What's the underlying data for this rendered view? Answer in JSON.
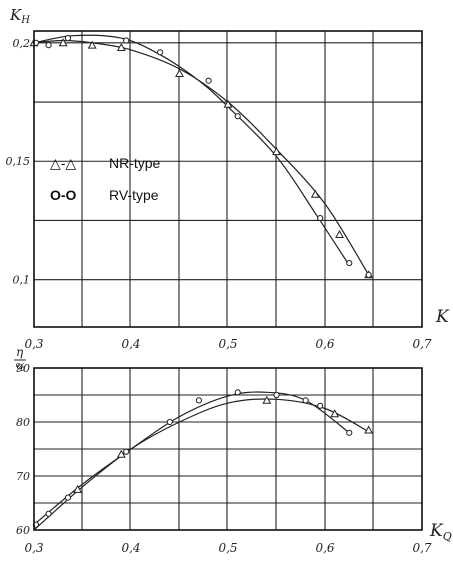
{
  "chart_data": [
    {
      "type": "line",
      "ylabel": "K_H",
      "xlabel": "K_Q",
      "xlim": [
        0.3,
        0.7
      ],
      "ylim": [
        0.08,
        0.205
      ],
      "xticks": [
        "0,3",
        "0,4",
        "0,5",
        "0,6",
        "0,7"
      ],
      "yticks": [
        {
          "v": 0.2,
          "label": "0,2"
        },
        {
          "v": 0.15,
          "label": "0,15"
        },
        {
          "v": 0.1,
          "label": "0,1"
        }
      ],
      "legend": [
        {
          "symbol": "△-△",
          "name": "NR-type"
        },
        {
          "symbol": "O-O",
          "name": "RV-type"
        }
      ],
      "series": [
        {
          "name": "NR-type",
          "marker": "triangle",
          "points": [
            [
              0.3,
              0.2
            ],
            [
              0.33,
              0.2
            ],
            [
              0.36,
              0.199
            ],
            [
              0.39,
              0.198
            ],
            [
              0.45,
              0.187
            ],
            [
              0.5,
              0.174
            ],
            [
              0.55,
              0.154
            ],
            [
              0.59,
              0.136
            ],
            [
              0.615,
              0.119
            ],
            [
              0.645,
              0.102
            ]
          ],
          "curve": [
            [
              0.3,
              0.2
            ],
            [
              0.33,
              0.201
            ],
            [
              0.36,
              0.2
            ],
            [
              0.4,
              0.197
            ],
            [
              0.45,
              0.189
            ],
            [
              0.5,
              0.175
            ],
            [
              0.55,
              0.155
            ],
            [
              0.6,
              0.132
            ],
            [
              0.645,
              0.102
            ]
          ]
        },
        {
          "name": "RV-type",
          "marker": "circle",
          "points": [
            [
              0.302,
              0.2
            ],
            [
              0.315,
              0.199
            ],
            [
              0.335,
              0.202
            ],
            [
              0.395,
              0.201
            ],
            [
              0.43,
              0.196
            ],
            [
              0.48,
              0.184
            ],
            [
              0.51,
              0.169
            ],
            [
              0.595,
              0.126
            ],
            [
              0.625,
              0.107
            ],
            [
              0.645,
              0.102
            ]
          ],
          "curve": [
            [
              0.3,
              0.2
            ],
            [
              0.34,
              0.203
            ],
            [
              0.39,
              0.202
            ],
            [
              0.43,
              0.195
            ],
            [
              0.47,
              0.184
            ],
            [
              0.5,
              0.173
            ],
            [
              0.55,
              0.152
            ],
            [
              0.59,
              0.128
            ],
            [
              0.625,
              0.106
            ]
          ]
        }
      ]
    },
    {
      "type": "line",
      "ylabel": "η %",
      "xlabel": "K_Q",
      "xlim": [
        0.3,
        0.7
      ],
      "ylim": [
        60,
        90
      ],
      "xticks": [
        "0,3",
        "0,4",
        "0,5",
        "0,6",
        "0,7"
      ],
      "yticks": [
        {
          "v": 90,
          "label": "90"
        },
        {
          "v": 80,
          "label": "80"
        },
        {
          "v": 70,
          "label": "70"
        },
        {
          "v": 60,
          "label": "60"
        }
      ],
      "series": [
        {
          "name": "NR-type",
          "marker": "triangle",
          "points": [
            [
              0.345,
              67.5
            ],
            [
              0.39,
              74.0
            ],
            [
              0.54,
              84.0
            ],
            [
              0.61,
              81.5
            ],
            [
              0.645,
              78.5
            ]
          ],
          "curve": [
            [
              0.3,
              60.0
            ],
            [
              0.35,
              68.0
            ],
            [
              0.4,
              75.0
            ],
            [
              0.45,
              80.0
            ],
            [
              0.5,
              83.5
            ],
            [
              0.55,
              84.2
            ],
            [
              0.6,
              82.5
            ],
            [
              0.645,
              78.2
            ]
          ]
        },
        {
          "name": "RV-type",
          "marker": "circle",
          "points": [
            [
              0.302,
              61.0
            ],
            [
              0.315,
              63.0
            ],
            [
              0.335,
              66.0
            ],
            [
              0.395,
              74.5
            ],
            [
              0.44,
              80.0
            ],
            [
              0.47,
              84.0
            ],
            [
              0.51,
              85.5
            ],
            [
              0.55,
              85.0
            ],
            [
              0.58,
              84.0
            ],
            [
              0.595,
              83.0
            ],
            [
              0.625,
              78.0
            ]
          ],
          "curve": [
            [
              0.3,
              61.0
            ],
            [
              0.35,
              68.5
            ],
            [
              0.4,
              75.0
            ],
            [
              0.45,
              81.0
            ],
            [
              0.5,
              84.8
            ],
            [
              0.54,
              85.5
            ],
            [
              0.58,
              84.0
            ],
            [
              0.625,
              78.0
            ]
          ]
        }
      ]
    }
  ],
  "axis_symbols": {
    "top_y": "K",
    "top_y_sub": "H",
    "top_x": "K",
    "bottom_y_top": "η",
    "bottom_y_bottom": "%",
    "bottom_x": "K",
    "bottom_x_sub": "Q"
  }
}
